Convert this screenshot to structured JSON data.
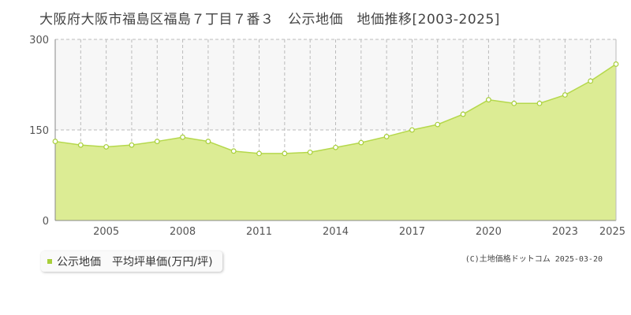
{
  "title": "大阪府大阪市福島区福島７丁目７番３　公示地価　地価推移[2003-2025]",
  "legend_label": "公示地価　平均坪単価(万円/坪)",
  "copyright": "(C)土地価格ドットコム 2025-03-20",
  "colors": {
    "fill": "#dcec94",
    "line": "#b5d84c",
    "marker_fill": "#ffffff",
    "marker_stroke": "#a8cf3a",
    "legend_marker": "#a8cf3a"
  },
  "chart_data": {
    "type": "area",
    "title": "大阪府大阪市福島区福島７丁目７番３　公示地価　地価推移[2003-2025]",
    "xlabel": "",
    "ylabel": "",
    "x": [
      2003,
      2004,
      2005,
      2006,
      2007,
      2008,
      2009,
      2010,
      2011,
      2012,
      2013,
      2014,
      2015,
      2016,
      2017,
      2018,
      2019,
      2020,
      2021,
      2022,
      2023,
      2024,
      2025
    ],
    "series": [
      {
        "name": "公示地価　平均坪単価(万円/坪)",
        "values": [
          131,
          125,
          122,
          125,
          131,
          138,
          131,
          115,
          111,
          111,
          113,
          121,
          129,
          139,
          150,
          159,
          176,
          200,
          194,
          194,
          208,
          231,
          259
        ]
      }
    ],
    "xlim": [
      2003,
      2025
    ],
    "ylim": [
      0,
      300
    ],
    "yticks": [
      0,
      150,
      300
    ],
    "xtick_labels": [
      "2005",
      "2008",
      "2011",
      "2014",
      "2017",
      "2020",
      "2023",
      "2025"
    ],
    "xtick_values": [
      2005,
      2008,
      2011,
      2014,
      2017,
      2020,
      2023,
      2025
    ],
    "grid": true,
    "legend_position": "bottom-left"
  }
}
